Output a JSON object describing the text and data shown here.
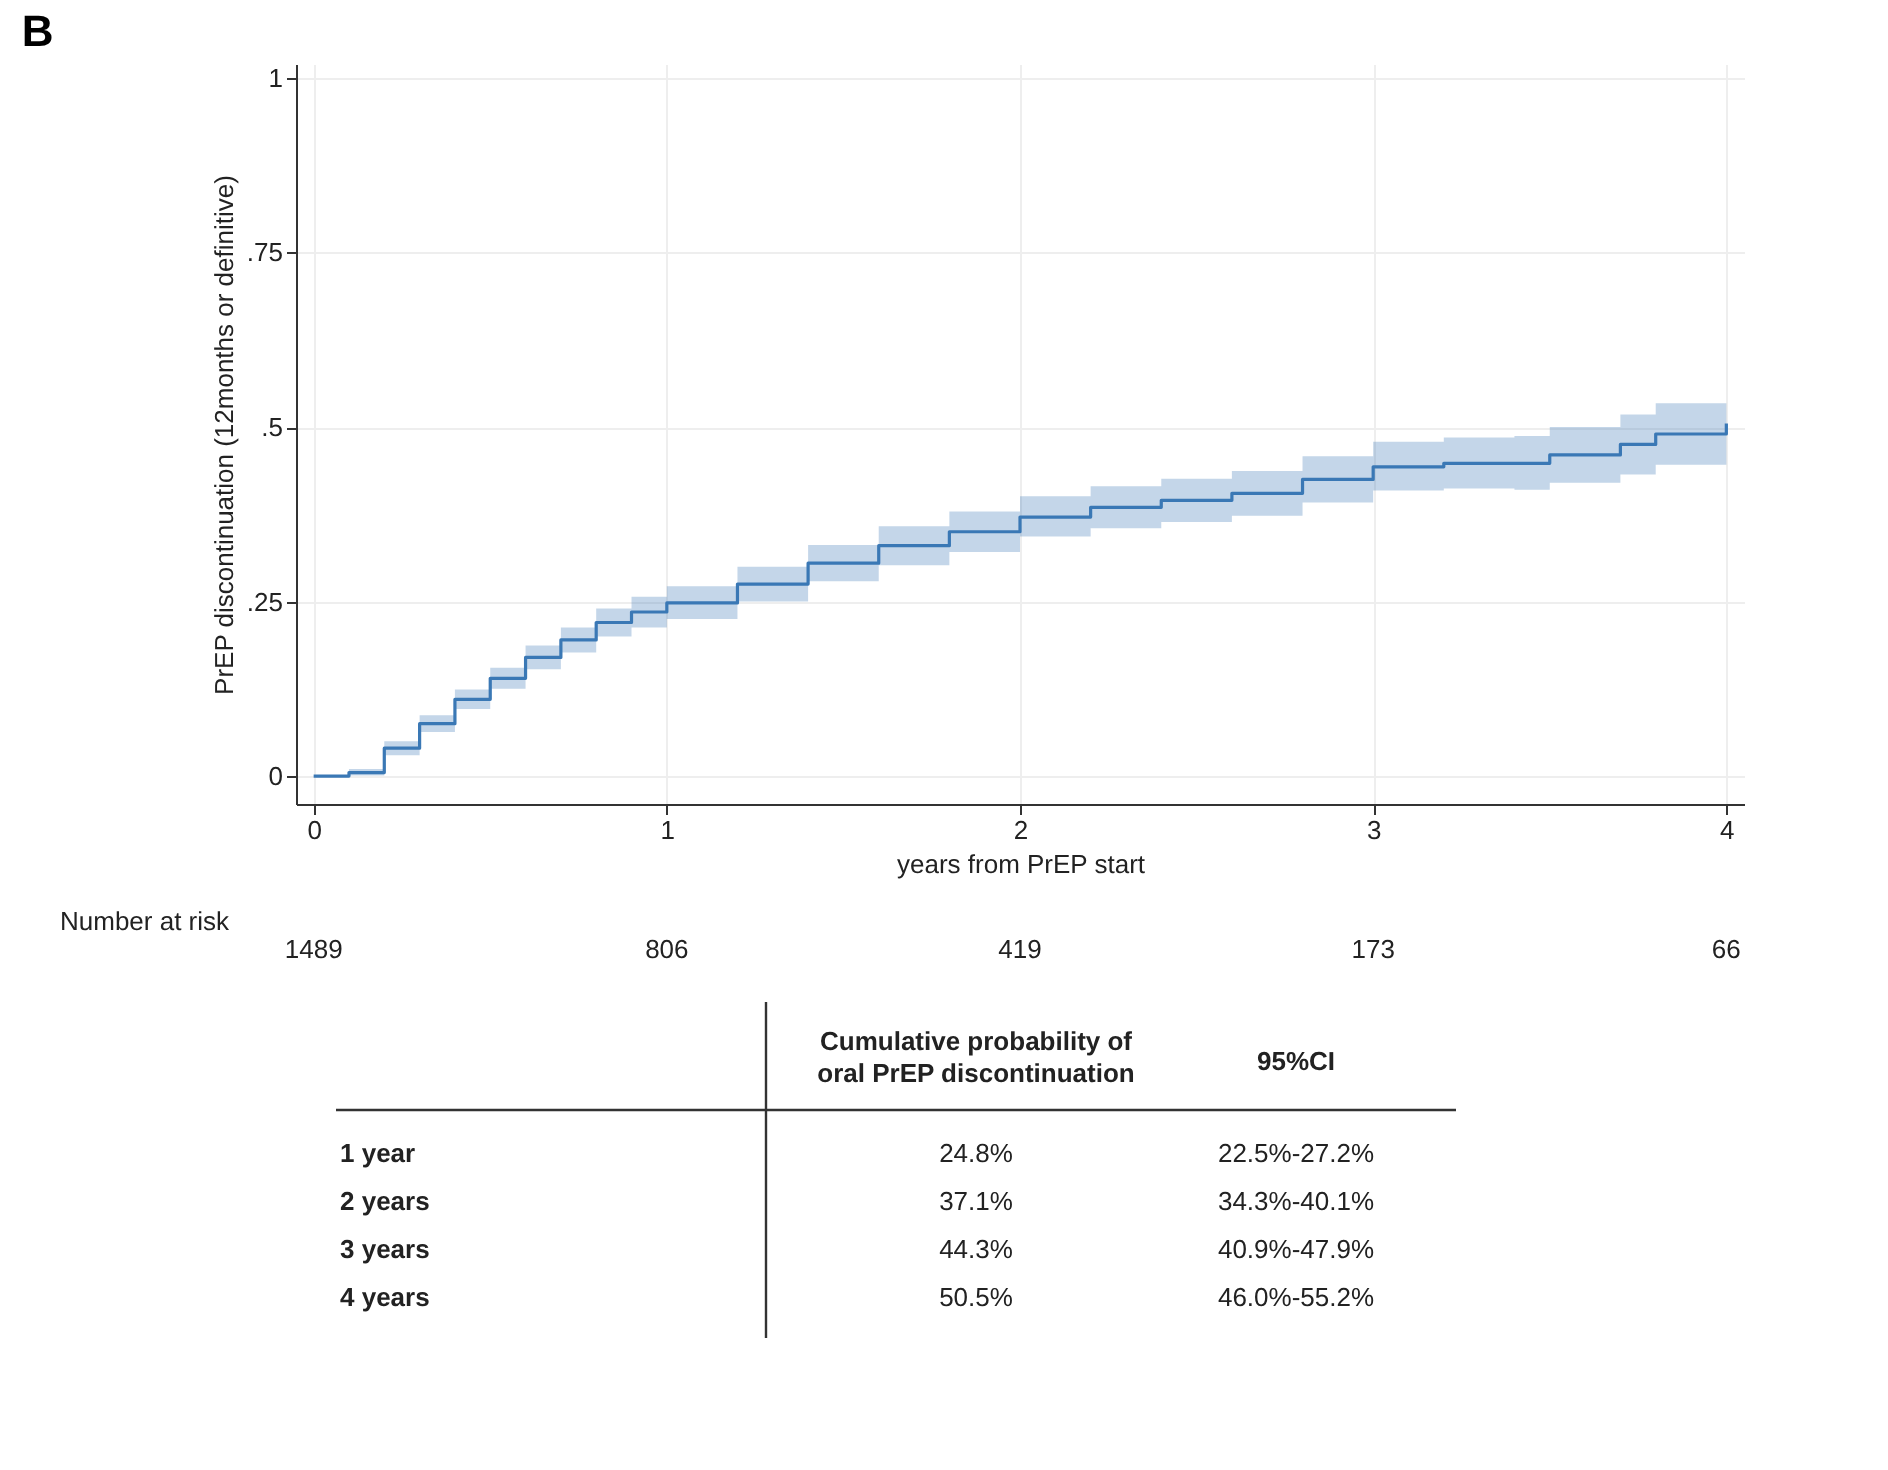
{
  "chart_data": {
    "type": "step",
    "title": "B",
    "xlabel": "years from PrEP start",
    "ylabel": "PrEP discontinuation (12months or definitive)",
    "xlim": [
      -0.05,
      4.05
    ],
    "xticks": [
      0,
      1,
      2,
      3,
      4
    ],
    "ylim": [
      -0.04,
      1.02
    ],
    "yticks": [
      0,
      {
        "value": 0.25,
        "label": ".25"
      },
      {
        "value": 0.5,
        "label": ".5"
      },
      {
        "value": 0.75,
        "label": ".75"
      },
      1
    ],
    "grid": true,
    "series": [
      {
        "color": "#3a78b5",
        "x": [
          0,
          0.1,
          0.2,
          0.3,
          0.4,
          0.5,
          0.6,
          0.7,
          0.8,
          0.9,
          1.0,
          1.2,
          1.4,
          1.6,
          1.8,
          2.0,
          2.2,
          2.4,
          2.6,
          2.8,
          3.0,
          3.2,
          3.4,
          3.5,
          3.7,
          3.8,
          4.0
        ],
        "values": [
          0,
          0.005,
          0.04,
          0.075,
          0.11,
          0.14,
          0.17,
          0.195,
          0.22,
          0.235,
          0.248,
          0.275,
          0.305,
          0.33,
          0.35,
          0.371,
          0.385,
          0.395,
          0.405,
          0.425,
          0.443,
          0.448,
          0.448,
          0.46,
          0.475,
          0.49,
          0.505
        ],
        "lower": [
          0,
          0.001,
          0.03,
          0.063,
          0.096,
          0.125,
          0.153,
          0.177,
          0.2,
          0.213,
          0.225,
          0.25,
          0.279,
          0.302,
          0.321,
          0.343,
          0.355,
          0.364,
          0.373,
          0.392,
          0.409,
          0.412,
          0.41,
          0.42,
          0.432,
          0.446,
          0.46
        ],
        "upper": [
          0,
          0.01,
          0.05,
          0.087,
          0.124,
          0.155,
          0.187,
          0.213,
          0.24,
          0.257,
          0.272,
          0.3,
          0.331,
          0.358,
          0.379,
          0.401,
          0.415,
          0.426,
          0.437,
          0.458,
          0.479,
          0.485,
          0.487,
          0.5,
          0.518,
          0.534,
          0.552
        ]
      }
    ],
    "annotations": [
      "Number at risk",
      "1489",
      "806",
      "419",
      "173",
      "66",
      "Cumulative probability of oral PrEP discontinuation",
      "95%CI",
      "1 year",
      "24.8%",
      "22.5%-27.2%",
      "2 years",
      "37.1%",
      "34.3%-40.1%",
      "3 years",
      "44.3%",
      "40.9%-47.9%",
      "4 years",
      "50.5%",
      "46.0%-55.2%"
    ]
  }
}
